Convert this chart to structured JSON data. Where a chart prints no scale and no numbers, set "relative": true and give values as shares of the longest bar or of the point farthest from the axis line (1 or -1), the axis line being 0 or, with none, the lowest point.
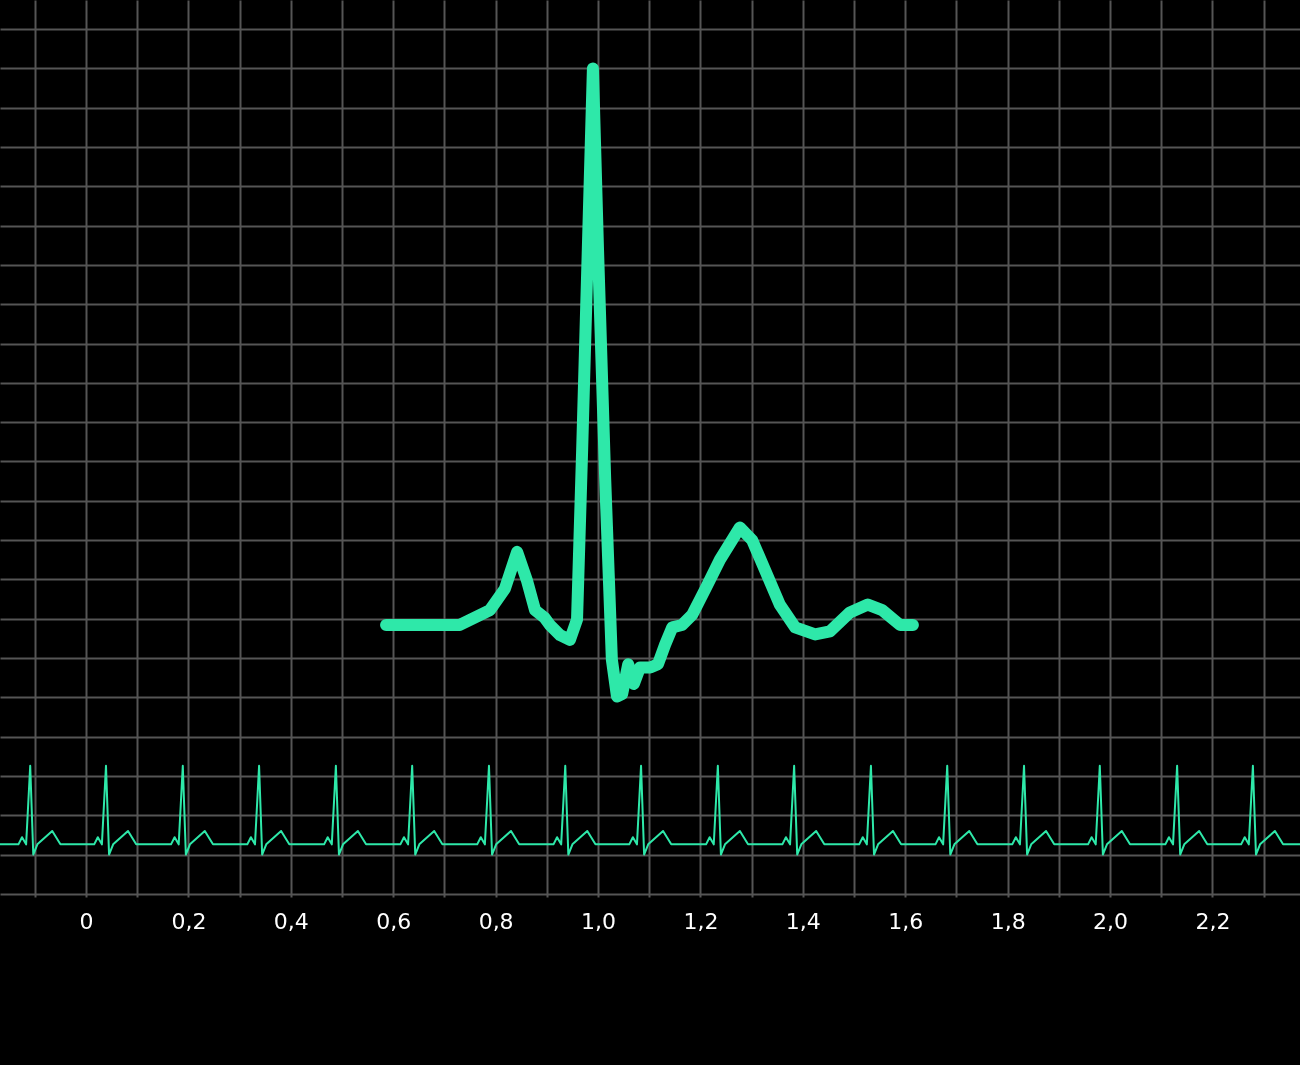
{
  "chart_data": {
    "type": "line",
    "relative": true,
    "grid": true,
    "xlim": [
      -0.168,
      2.371
    ],
    "xticks": [
      {
        "value": -0.1,
        "label": null
      },
      0,
      {
        "value": 0.1,
        "label": null
      },
      {
        "value": 0.2,
        "label": "0,2"
      },
      {
        "value": 0.3,
        "label": null
      },
      {
        "value": 0.4,
        "label": "0,4"
      },
      {
        "value": 0.5,
        "label": null
      },
      {
        "value": 0.6,
        "label": "0,6"
      },
      {
        "value": 0.7,
        "label": null
      },
      {
        "value": 0.8,
        "label": "0,8"
      },
      {
        "value": 0.9,
        "label": null
      },
      {
        "value": 1.0,
        "label": "1,0"
      },
      {
        "value": 1.1,
        "label": null
      },
      {
        "value": 1.2,
        "label": "1,2"
      },
      {
        "value": 1.3,
        "label": null
      },
      {
        "value": 1.4,
        "label": "1,4"
      },
      {
        "value": 1.5,
        "label": null
      },
      {
        "value": 1.6,
        "label": "1,6"
      },
      {
        "value": 1.7,
        "label": null
      },
      {
        "value": 1.8,
        "label": "1,8"
      },
      {
        "value": 1.9,
        "label": null
      },
      {
        "value": 2.0,
        "label": "2,0"
      },
      {
        "value": 2.1,
        "label": null
      },
      {
        "value": 2.2,
        "label": "2,2"
      },
      {
        "value": 2.3,
        "label": null
      }
    ],
    "series": [
      {
        "color": "#2ee8a9",
        "x": [
          0.586,
          0.73,
          0.789,
          0.818,
          0.842,
          0.861,
          0.877,
          0.896,
          0.906,
          0.926,
          0.945,
          0.959,
          0.969,
          0.98,
          0.99,
          1.0,
          1.014,
          1.027,
          1.037,
          1.047,
          1.059,
          1.07,
          1.082,
          1.102,
          1.117,
          1.131,
          1.145,
          1.164,
          1.184,
          1.209,
          1.238,
          1.277,
          1.301,
          1.326,
          1.355,
          1.385,
          1.424,
          1.453,
          1.492,
          1.527,
          1.555,
          1.59,
          1.615
        ],
        "values": [
          0.292,
          0.292,
          0.311,
          0.338,
          0.385,
          0.349,
          0.311,
          0.301,
          0.292,
          0.279,
          0.273,
          0.299,
          0.515,
          0.769,
          1.0,
          0.769,
          0.477,
          0.248,
          0.201,
          0.204,
          0.242,
          0.217,
          0.238,
          0.238,
          0.242,
          0.267,
          0.289,
          0.292,
          0.305,
          0.337,
          0.375,
          0.416,
          0.4,
          0.362,
          0.318,
          0.289,
          0.28,
          0.284,
          0.308,
          0.318,
          0.311,
          0.292,
          0.292
        ]
      },
      {
        "color": "#2ee8a9",
        "x": [
          -0.168,
          -0.132,
          -0.125,
          -0.117,
          -0.109,
          -0.103,
          -0.095,
          -0.066,
          -0.05,
          0.016,
          0.023,
          0.031,
          0.039,
          0.045,
          0.053,
          0.082,
          0.098,
          0.166,
          0.173,
          0.181,
          0.189,
          0.195,
          0.203,
          0.232,
          0.248,
          0.315,
          0.322,
          0.33,
          0.338,
          0.344,
          0.352,
          0.381,
          0.397,
          0.465,
          0.472,
          0.48,
          0.488,
          0.494,
          0.502,
          0.531,
          0.547,
          0.614,
          0.621,
          0.629,
          0.637,
          0.643,
          0.651,
          0.68,
          0.696,
          0.764,
          0.771,
          0.779,
          0.787,
          0.793,
          0.801,
          0.83,
          0.846,
          0.913,
          0.92,
          0.928,
          0.936,
          0.942,
          0.95,
          0.979,
          0.995,
          1.061,
          1.068,
          1.076,
          1.084,
          1.09,
          1.098,
          1.127,
          1.143,
          1.211,
          1.218,
          1.226,
          1.234,
          1.24,
          1.248,
          1.277,
          1.293,
          1.36,
          1.367,
          1.375,
          1.383,
          1.389,
          1.397,
          1.426,
          1.442,
          1.51,
          1.517,
          1.525,
          1.533,
          1.539,
          1.547,
          1.576,
          1.592,
          1.659,
          1.666,
          1.674,
          1.682,
          1.688,
          1.696,
          1.725,
          1.741,
          1.809,
          1.816,
          1.824,
          1.832,
          1.838,
          1.846,
          1.875,
          1.891,
          1.957,
          1.964,
          1.972,
          1.98,
          1.986,
          1.994,
          2.023,
          2.039,
          2.108,
          2.115,
          2.123,
          2.131,
          2.137,
          2.145,
          2.174,
          2.19,
          2.256,
          2.263,
          2.271,
          2.279,
          2.285,
          2.293,
          2.322,
          2.338,
          2.371
        ],
        "values": [
          0.013,
          0.013,
          0.022,
          0.013,
          0.113,
          0,
          0.013,
          0.03,
          0.013,
          0.013,
          0.022,
          0.013,
          0.113,
          0,
          0.013,
          0.03,
          0.013,
          0.013,
          0.022,
          0.013,
          0.113,
          0,
          0.013,
          0.03,
          0.013,
          0.013,
          0.022,
          0.013,
          0.113,
          0,
          0.013,
          0.03,
          0.013,
          0.013,
          0.022,
          0.013,
          0.113,
          0,
          0.013,
          0.03,
          0.013,
          0.013,
          0.022,
          0.013,
          0.113,
          0,
          0.013,
          0.03,
          0.013,
          0.013,
          0.022,
          0.013,
          0.113,
          0,
          0.013,
          0.03,
          0.013,
          0.013,
          0.022,
          0.013,
          0.113,
          0,
          0.013,
          0.03,
          0.013,
          0.013,
          0.022,
          0.013,
          0.113,
          0,
          0.013,
          0.03,
          0.013,
          0.013,
          0.022,
          0.013,
          0.113,
          0,
          0.013,
          0.03,
          0.013,
          0.013,
          0.022,
          0.013,
          0.113,
          0,
          0.013,
          0.03,
          0.013,
          0.013,
          0.022,
          0.013,
          0.113,
          0,
          0.013,
          0.03,
          0.013,
          0.013,
          0.022,
          0.013,
          0.113,
          0,
          0.013,
          0.03,
          0.013,
          0.013,
          0.022,
          0.013,
          0.113,
          0,
          0.013,
          0.03,
          0.013,
          0.013,
          0.022,
          0.013,
          0.113,
          0,
          0.013,
          0.03,
          0.013,
          0.013,
          0.022,
          0.013,
          0.113,
          0,
          0.013,
          0.03,
          0.013,
          0.013,
          0.022,
          0.013,
          0.113,
          0,
          0.013,
          0.03,
          0.013,
          0.013
        ]
      }
    ]
  }
}
